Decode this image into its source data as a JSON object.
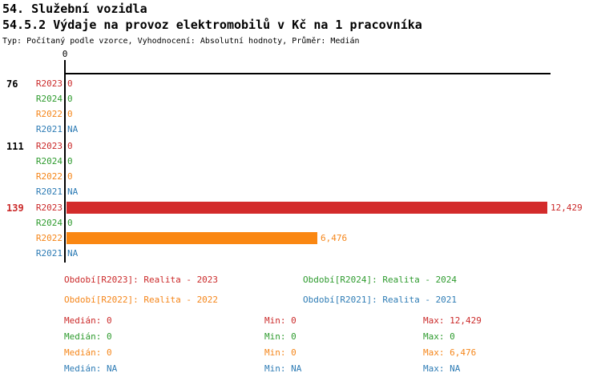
{
  "header": {
    "title": "54. Služební vozidla",
    "subtitle": "54.5.2 Výdaje na provoz elektromobilů v Kč na 1 pracovníka",
    "meta": "Typ: Počítaný podle vzorce, Vyhodnocení: Absolutní hodnoty, Průměr: Medián"
  },
  "colors": {
    "R2023": "#CB2A2A",
    "R2024": "#2E9B2E",
    "R2022": "#F5861A",
    "R2021": "#2E7CB5",
    "bar_R2023": "#D32B2B",
    "bar_R2022": "#FA8712",
    "axis": "#000000"
  },
  "chart_data": {
    "type": "bar",
    "orientation": "horizontal",
    "title": "54.5.2 Výdaje na provoz elektromobilů v Kč na 1 pracovníka",
    "axis_zero_label": "0",
    "xlim": [
      0,
      12429
    ],
    "xmax": 12429,
    "series_order": [
      "R2023",
      "R2024",
      "R2022",
      "R2021"
    ],
    "groups": [
      {
        "label": "76",
        "label_color": "#000000",
        "rows": [
          {
            "series": "R2023",
            "value": 0,
            "display": "0"
          },
          {
            "series": "R2024",
            "value": 0,
            "display": "0"
          },
          {
            "series": "R2022",
            "value": 0,
            "display": "0"
          },
          {
            "series": "R2021",
            "value": null,
            "display": "NA"
          }
        ]
      },
      {
        "label": "111",
        "label_color": "#000000",
        "rows": [
          {
            "series": "R2023",
            "value": 0,
            "display": "0"
          },
          {
            "series": "R2024",
            "value": 0,
            "display": "0"
          },
          {
            "series": "R2022",
            "value": 0,
            "display": "0"
          },
          {
            "series": "R2021",
            "value": null,
            "display": "NA"
          }
        ]
      },
      {
        "label": "139",
        "label_color": "#CB2A2A",
        "rows": [
          {
            "series": "R2023",
            "value": 12429,
            "display": "12,429"
          },
          {
            "series": "R2024",
            "value": 0,
            "display": "0"
          },
          {
            "series": "R2022",
            "value": 6476,
            "display": "6,476"
          },
          {
            "series": "R2021",
            "value": null,
            "display": "NA"
          }
        ]
      }
    ]
  },
  "legend": {
    "items": [
      {
        "series": "R2023",
        "label": "Období[R2023]: Realita - 2023"
      },
      {
        "series": "R2024",
        "label": "Období[R2024]: Realita - 2024"
      },
      {
        "series": "R2022",
        "label": "Období[R2022]: Realita - 2022"
      },
      {
        "series": "R2021",
        "label": "Období[R2021]: Realita - 2021"
      }
    ]
  },
  "stats": {
    "median_label": "Medián:",
    "min_label": "Min:",
    "max_label": "Max:",
    "rows": [
      {
        "series": "R2023",
        "median": "0",
        "min": "0",
        "max": "12,429"
      },
      {
        "series": "R2024",
        "median": "0",
        "min": "0",
        "max": "0"
      },
      {
        "series": "R2022",
        "median": "0",
        "min": "0",
        "max": "6,476"
      },
      {
        "series": "R2021",
        "median": "NA",
        "min": "NA",
        "max": "NA"
      }
    ]
  }
}
